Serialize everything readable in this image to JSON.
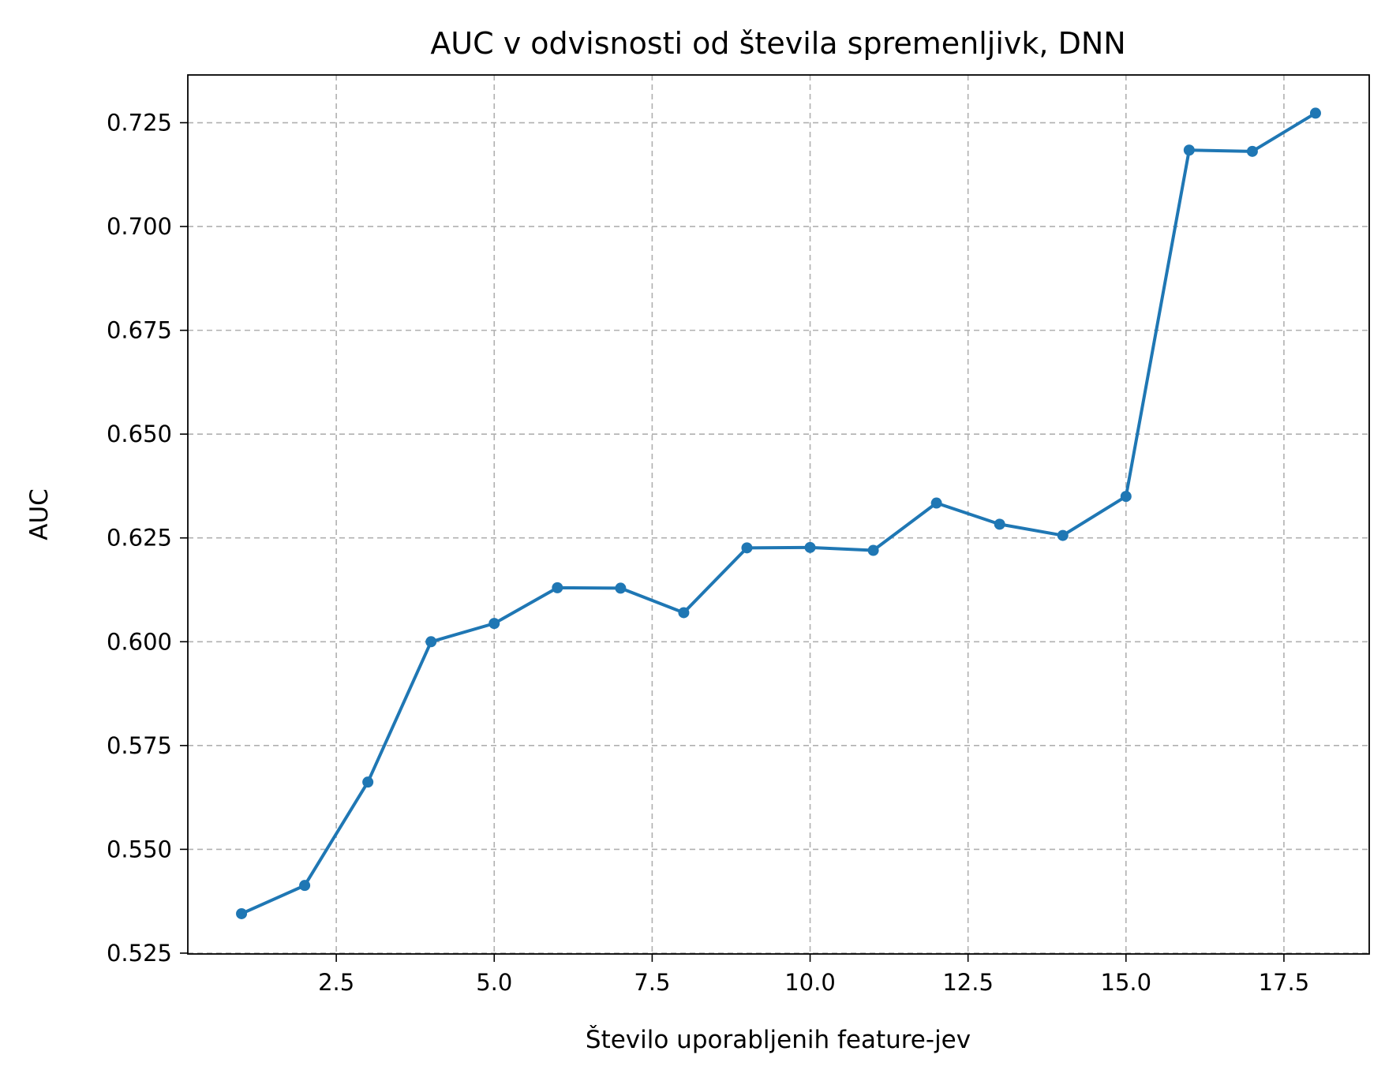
{
  "chart_data": {
    "type": "line",
    "title": "AUC v odvisnosti od števila spremenljivk, DNN",
    "xlabel": "Število uporabljenih feature-jev",
    "ylabel": "AUC",
    "xlim": [
      0.15,
      18.85
    ],
    "ylim": [
      0.5248,
      0.7365
    ],
    "grid": true,
    "xticks": [
      2.5,
      5.0,
      7.5,
      10.0,
      12.5,
      15.0,
      17.5
    ],
    "xtick_labels": [
      "2.5",
      "5.0",
      "7.5",
      "10.0",
      "12.5",
      "15.0",
      "17.5"
    ],
    "yticks": [
      0.525,
      0.55,
      0.575,
      0.6,
      0.625,
      0.65,
      0.675,
      0.7,
      0.725
    ],
    "ytick_labels": [
      "0.525",
      "0.550",
      "0.575",
      "0.600",
      "0.625",
      "0.650",
      "0.675",
      "0.700",
      "0.725"
    ],
    "color": "#1f77b4",
    "series": [
      {
        "x": [
          1,
          2,
          3,
          4,
          5,
          6,
          7,
          8,
          9,
          10,
          11,
          12,
          13,
          14,
          15,
          16,
          17,
          18
        ],
        "values": [
          0.5345,
          0.5413,
          0.5662,
          0.6,
          0.6044,
          0.613,
          0.6129,
          0.607,
          0.6226,
          0.6227,
          0.622,
          0.6334,
          0.6283,
          0.6256,
          0.635,
          0.7184,
          0.7181,
          0.7273
        ]
      }
    ]
  }
}
